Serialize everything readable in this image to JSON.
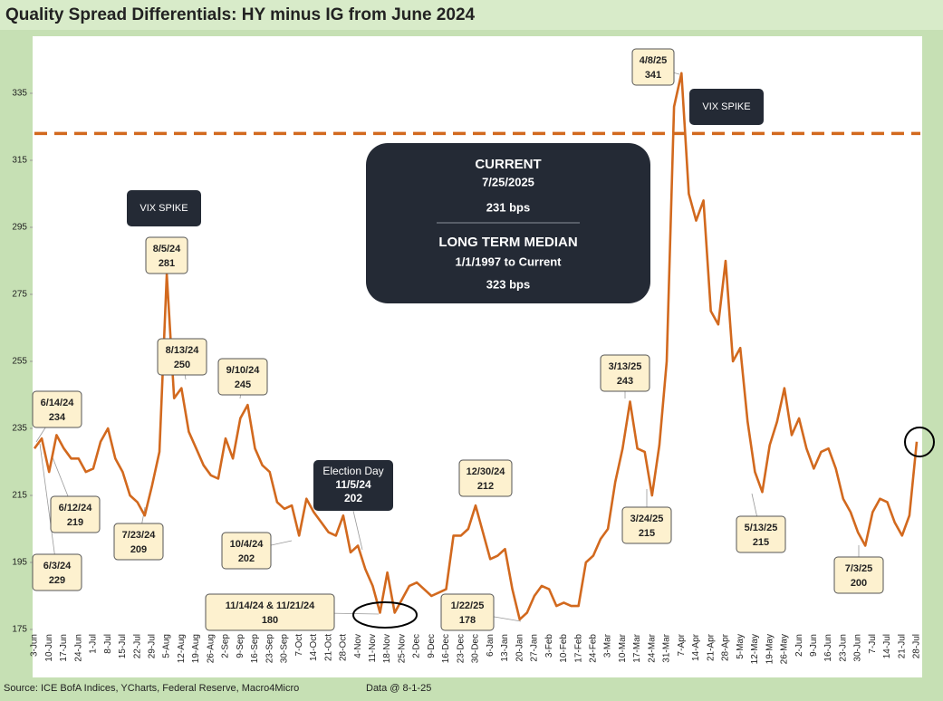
{
  "chart_data": {
    "type": "line",
    "title": "Quality Spread Differentials: HY minus IG from June 2024",
    "categories": [
      "3-Jun",
      null,
      "10-Jun",
      null,
      "17-Jun",
      null,
      "24-Jun",
      null,
      "1-Jul",
      null,
      "8-Jul",
      null,
      "15-Jul",
      null,
      "22-Jul",
      null,
      "29-Jul",
      null,
      "5-Aug",
      null,
      "12-Aug",
      null,
      "19-Aug",
      null,
      "26-Aug",
      null,
      "2-Sep",
      null,
      "9-Sep",
      null,
      "16-Sep",
      null,
      "23-Sep",
      null,
      "30-Sep",
      null,
      "7-Oct",
      null,
      "14-Oct",
      null,
      "21-Oct",
      null,
      "28-Oct",
      null,
      "4-Nov",
      null,
      "11-Nov",
      null,
      "18-Nov",
      null,
      "25-Nov",
      null,
      "2-Dec",
      null,
      "9-Dec",
      null,
      "16-Dec",
      null,
      "23-Dec",
      null,
      "30-Dec",
      null,
      "6-Jan",
      null,
      "13-Jan",
      null,
      "20-Jan",
      null,
      "27-Jan",
      null,
      "3-Feb",
      null,
      "10-Feb",
      null,
      "17-Feb",
      null,
      "24-Feb",
      null,
      "3-Mar",
      null,
      "10-Mar",
      null,
      "17-Mar",
      null,
      "24-Mar",
      null,
      "31-Mar",
      null,
      "7-Apr",
      null,
      "14-Apr",
      null,
      "21-Apr",
      null,
      "28-Apr",
      null,
      "5-May",
      null,
      "12-May",
      null,
      "19-May",
      null,
      "26-May",
      null,
      "2-Jun",
      null,
      "9-Jun",
      null,
      "16-Jun",
      null,
      "23-Jun",
      null,
      "30-Jun",
      null,
      "7-Jul",
      null,
      "14-Jul",
      null,
      "21-Jul",
      null,
      "28-Jul"
    ],
    "series": [
      {
        "name": "HY minus IG",
        "color": "#d2691e",
        "values": [
          229,
          232,
          222,
          233,
          229,
          226,
          226,
          222,
          223,
          231,
          235,
          226,
          222,
          215,
          213,
          209,
          218,
          228,
          281,
          244,
          247,
          234,
          229,
          224,
          221,
          220,
          232,
          226,
          238,
          242,
          229,
          224,
          222,
          213,
          211,
          212,
          203,
          214,
          210,
          207,
          204,
          203,
          209,
          198,
          200,
          193,
          188,
          180,
          192,
          180,
          184,
          188,
          189,
          187,
          185,
          186,
          187,
          203,
          203,
          205,
          212,
          204,
          196,
          197,
          199,
          187,
          178,
          180,
          185,
          188,
          187,
          182,
          183,
          182,
          182,
          195,
          197,
          202,
          205,
          219,
          229,
          243,
          229,
          228,
          215,
          230,
          255,
          331,
          341,
          305,
          297,
          303,
          270,
          266,
          285,
          255,
          259,
          237,
          222,
          216,
          230,
          237,
          247,
          233,
          238,
          229,
          223,
          228,
          229,
          223,
          214,
          210,
          204,
          200,
          210,
          214,
          213,
          207,
          203,
          209,
          231
        ]
      }
    ],
    "ylim": [
      175,
      350
    ],
    "yticks": [
      175,
      195,
      215,
      235,
      255,
      275,
      295,
      315,
      335
    ],
    "grid": false,
    "reference_line": {
      "value": 323,
      "color": "#d2691e",
      "style": "dashed"
    },
    "callouts": [
      {
        "label": "6/14/24",
        "value": 234
      },
      {
        "label": "6/12/24",
        "value": 219
      },
      {
        "label": "6/3/24",
        "value": 229
      },
      {
        "label": "7/23/24",
        "value": 209
      },
      {
        "label": "8/5/24",
        "value": 281
      },
      {
        "label": "8/13/24",
        "value": 250
      },
      {
        "label": "9/10/24",
        "value": 245
      },
      {
        "label": "10/4/24",
        "value": 202
      },
      {
        "label": "11/14/24 & 11/21/24",
        "value": 180
      },
      {
        "label": "1/22/25",
        "value": 178
      },
      {
        "label": "12/30/24",
        "value": 212
      },
      {
        "label": "3/13/25",
        "value": 243
      },
      {
        "label": "3/24/25",
        "value": 215
      },
      {
        "label": "4/8/25",
        "value": 341
      },
      {
        "label": "5/13/25",
        "value": 215
      },
      {
        "label": "7/3/25",
        "value": 200
      }
    ],
    "notes": [
      "VIX SPIKE",
      "VIX SPIKE"
    ],
    "election": {
      "title": "Election Day",
      "label": "11/5/24",
      "value": 202
    },
    "info_box": {
      "current_title": "CURRENT",
      "current_date": "7/25/2025",
      "current_value": "231 bps",
      "median_title": "LONG TERM MEDIAN",
      "median_period": "1/1/1997 to Current",
      "median_value": "323 bps"
    },
    "source": "Source: ICE BofA Indices, YCharts, Federal Reserve, Macro4Micro",
    "data_date": "Data @ 8-1-25"
  }
}
